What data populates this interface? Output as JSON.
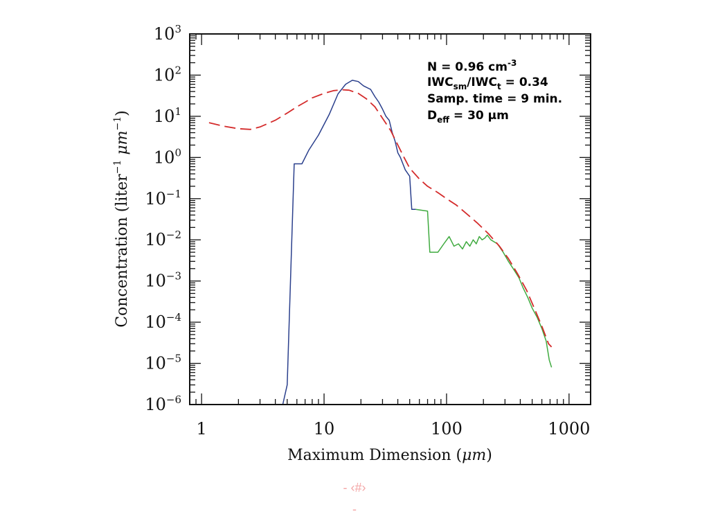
{
  "chart_data": {
    "type": "line",
    "xlabel_main": "Maximum Dimension (",
    "xlabel_unit": "μm",
    "xlabel_close": ")",
    "ylabel_main": "Concentration (liter",
    "ylabel_mid": " μm",
    "ylabel_close": ")",
    "ylabel_exp": "−1",
    "x_scale": "log",
    "y_scale": "log",
    "xlim": [
      0.8,
      1500
    ],
    "ylim": [
      1e-06,
      1000
    ],
    "x_ticks": [
      {
        "value": 1,
        "label": "1"
      },
      {
        "value": 10,
        "label": "10"
      },
      {
        "value": 100,
        "label": "100"
      },
      {
        "value": 1000,
        "label": "1000"
      }
    ],
    "y_ticks": [
      {
        "value": 1000,
        "base": "10",
        "exp": "3"
      },
      {
        "value": 100,
        "base": "10",
        "exp": "2"
      },
      {
        "value": 10,
        "base": "10",
        "exp": "1"
      },
      {
        "value": 1,
        "base": "10",
        "exp": "0"
      },
      {
        "value": 0.1,
        "base": "10",
        "exp": "−1"
      },
      {
        "value": 0.01,
        "base": "10",
        "exp": "−2"
      },
      {
        "value": 0.001,
        "base": "10",
        "exp": "−3"
      },
      {
        "value": 0.0001,
        "base": "10",
        "exp": "−4"
      },
      {
        "value": 1e-05,
        "base": "10",
        "exp": "−5"
      },
      {
        "value": 1e-06,
        "base": "10",
        "exp": "−6"
      }
    ],
    "annotations": {
      "n_text": "N = 0.96 cm",
      "n_sup": "-3",
      "iwc_a": "IWC",
      "iwc_a_sub": "sm",
      "iwc_b": "/IWC",
      "iwc_b_sub": "t",
      "iwc_value": " = 0.34",
      "samp": "Samp. time = 9 min.",
      "deff_a": "D",
      "deff_sub": "eff",
      "deff_value": " = 30 μm"
    },
    "series": [
      {
        "color": "#2a3f8c",
        "style": "solid",
        "points": [
          [
            2,
            1e-06
          ],
          [
            4.6,
            1e-06
          ],
          [
            5.0,
            3e-06
          ],
          [
            5.7,
            0.7
          ],
          [
            6.6,
            0.7
          ],
          [
            7.5,
            1.5
          ],
          [
            9,
            3.5
          ],
          [
            11,
            11
          ],
          [
            13,
            35
          ],
          [
            15,
            60
          ],
          [
            17,
            75
          ],
          [
            19,
            70
          ],
          [
            21,
            55
          ],
          [
            24,
            45
          ],
          [
            26,
            30
          ],
          [
            28,
            22
          ],
          [
            30,
            15
          ],
          [
            32,
            10
          ],
          [
            34,
            8
          ],
          [
            36,
            4
          ],
          [
            38,
            2.5
          ],
          [
            40,
            1.3
          ],
          [
            42,
            1.0
          ],
          [
            44,
            0.7
          ],
          [
            46,
            0.5
          ],
          [
            50,
            0.35
          ],
          [
            52,
            0.055
          ],
          [
            56,
            0.055
          ]
        ]
      },
      {
        "color": "#3faa3f",
        "style": "solid",
        "points": [
          [
            56,
            0.055
          ],
          [
            70,
            0.05
          ],
          [
            73,
            0.005
          ],
          [
            85,
            0.005
          ],
          [
            95,
            0.008
          ],
          [
            105,
            0.012
          ],
          [
            115,
            0.007
          ],
          [
            125,
            0.008
          ],
          [
            135,
            0.006
          ],
          [
            145,
            0.009
          ],
          [
            155,
            0.007
          ],
          [
            165,
            0.01
          ],
          [
            175,
            0.008
          ],
          [
            185,
            0.012
          ],
          [
            195,
            0.01
          ],
          [
            205,
            0.011
          ],
          [
            215,
            0.013
          ],
          [
            230,
            0.01
          ],
          [
            260,
            0.008
          ],
          [
            290,
            0.005
          ],
          [
            320,
            0.003
          ],
          [
            350,
            0.002
          ],
          [
            390,
            0.0012
          ],
          [
            420,
            0.0007
          ],
          [
            460,
            0.0004
          ],
          [
            500,
            0.00022
          ],
          [
            550,
            0.00013
          ],
          [
            600,
            7e-05
          ],
          [
            650,
            3.5e-05
          ],
          [
            690,
            1.2e-05
          ],
          [
            720,
            8e-06
          ]
        ]
      },
      {
        "color": "#d42b2b",
        "style": "dashed",
        "points": [
          [
            1.15,
            7
          ],
          [
            1.5,
            5.8
          ],
          [
            2,
            5
          ],
          [
            2.5,
            4.8
          ],
          [
            3,
            5.5
          ],
          [
            4,
            8
          ],
          [
            5,
            12
          ],
          [
            6,
            17
          ],
          [
            7,
            22
          ],
          [
            8,
            28
          ],
          [
            10,
            36
          ],
          [
            12,
            42
          ],
          [
            14,
            44
          ],
          [
            16,
            43
          ],
          [
            19,
            36
          ],
          [
            22,
            27
          ],
          [
            26,
            17
          ],
          [
            30,
            9
          ],
          [
            35,
            4.5
          ],
          [
            40,
            2
          ],
          [
            45,
            1
          ],
          [
            50,
            0.55
          ],
          [
            60,
            0.3
          ],
          [
            70,
            0.2
          ],
          [
            85,
            0.14
          ],
          [
            100,
            0.1
          ],
          [
            120,
            0.07
          ],
          [
            150,
            0.04
          ],
          [
            180,
            0.025
          ],
          [
            220,
            0.014
          ],
          [
            270,
            0.007
          ],
          [
            320,
            0.0035
          ],
          [
            380,
            0.0015
          ],
          [
            450,
            0.0006
          ],
          [
            520,
            0.00022
          ],
          [
            600,
            8e-05
          ],
          [
            680,
            3e-05
          ],
          [
            720,
            2.5e-05
          ]
        ]
      }
    ]
  },
  "footer": {
    "line1": "- ‹#›",
    "line2": "-"
  }
}
